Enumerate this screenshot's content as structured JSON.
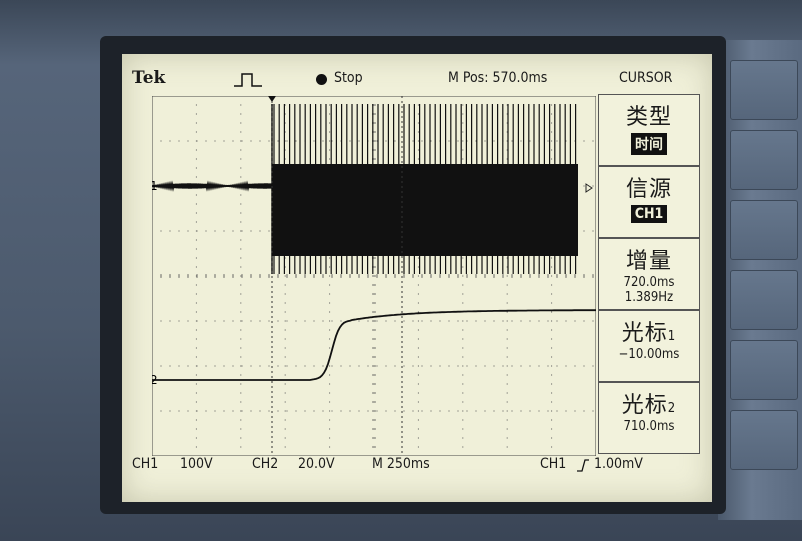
{
  "scope": {
    "brand": "Tek",
    "run_state": "Stop",
    "m_pos": "M Pos: 570.0ms",
    "menu_title": "CURSOR"
  },
  "menu": [
    {
      "label": "类型",
      "value": "时间"
    },
    {
      "label": "信源",
      "value": "CH1"
    },
    {
      "label": "增量",
      "line1": "720.0ms",
      "line2": "1.389Hz"
    },
    {
      "label": "光标",
      "suffix": "1",
      "value": "−10.00ms"
    },
    {
      "label": "光标",
      "suffix": "2",
      "value": "710.0ms"
    }
  ],
  "bottom": {
    "ch1": "CH1",
    "ch1_scale": "100V",
    "ch2": "CH2",
    "ch2_scale": "20.0V",
    "timebase": "M 250ms",
    "trigger_src": "CH1",
    "trigger_level": "1.00mV"
  },
  "markers": {
    "ch1": "1",
    "ch2": "2"
  },
  "colors": {
    "screen": "#f0f0d9",
    "trace": "#1a1a1a"
  }
}
